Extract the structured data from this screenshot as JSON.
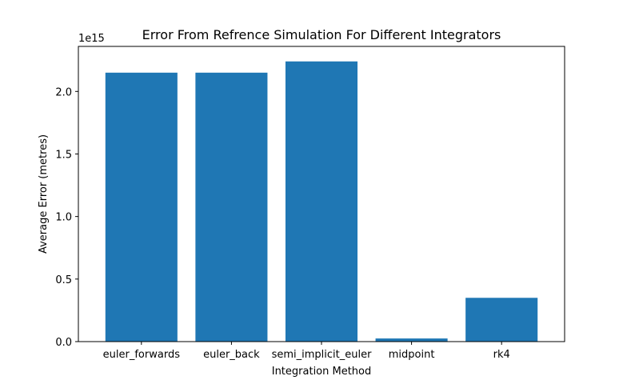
{
  "chart_data": {
    "type": "bar",
    "title": "Error From Refrence Simulation For Different Integrators",
    "xlabel": "Integration Method",
    "ylabel": "Average Error (metres)",
    "offset_label": "1e15",
    "categories": [
      "euler_forwards",
      "euler_back",
      "semi_implicit_euler",
      "midpoint",
      "rk4"
    ],
    "values": [
      2150000000000000.0,
      2150000000000000.0,
      2240000000000000.0,
      25000000000000.0,
      350000000000000.0
    ],
    "ylim": [
      0,
      2360000000000000.0
    ],
    "yticks": [
      0,
      500000000000000.0,
      1000000000000000.0,
      1500000000000000.0,
      2000000000000000.0
    ],
    "ytick_labels": [
      "0.0",
      "0.5",
      "1.0",
      "1.5",
      "2.0"
    ],
    "grid": false,
    "bar_color": "#1f77b4"
  }
}
